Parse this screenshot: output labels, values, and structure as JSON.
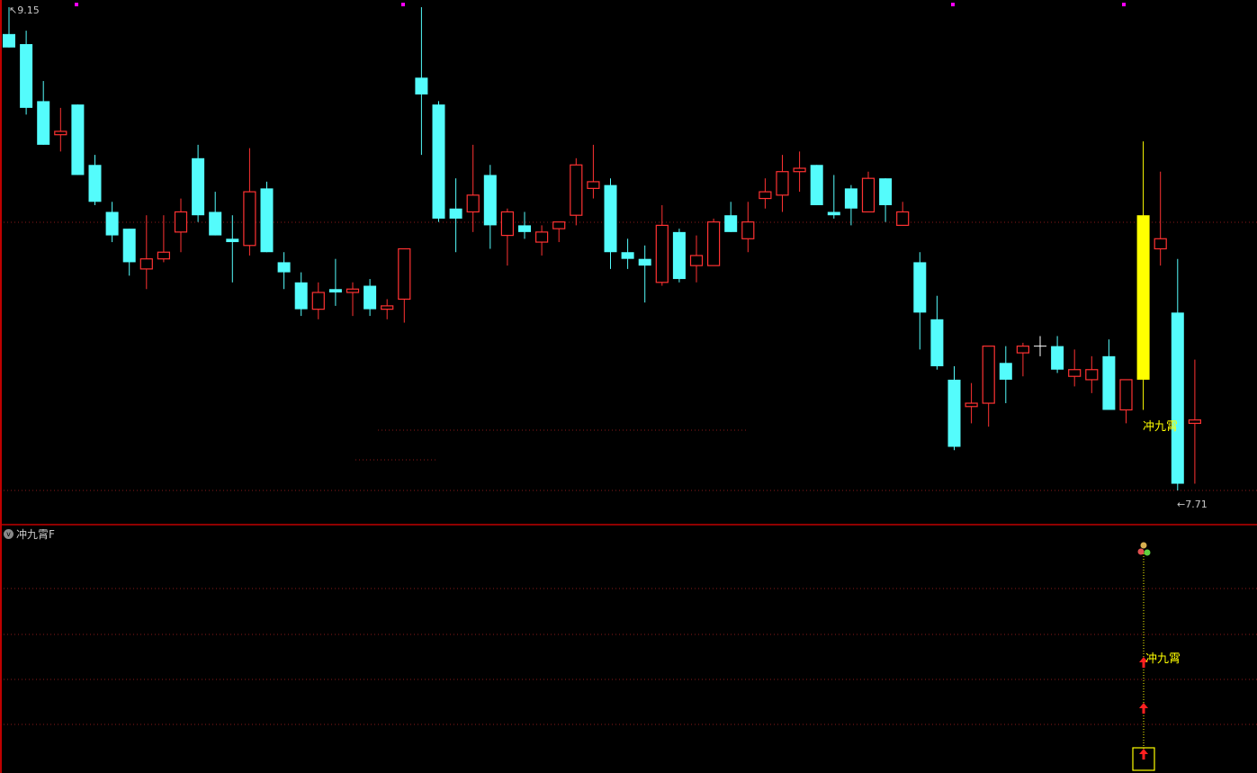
{
  "chart_data": {
    "type": "candlestick",
    "title": "",
    "ylim": [
      7.71,
      9.15
    ],
    "grid": true,
    "high_label": "9.15",
    "low_label": "7.71",
    "signal_index": 66,
    "signal_label": "冲九霄",
    "colors": {
      "up": "#ff3232",
      "down": "#54fcfc",
      "doji": "#ffffff",
      "signal": "#ffff00",
      "marker": "#ff00ff"
    },
    "ohlc": [
      [
        9.07,
        9.15,
        9.03,
        9.03
      ],
      [
        9.04,
        9.08,
        8.83,
        8.85
      ],
      [
        8.87,
        8.93,
        8.74,
        8.74
      ],
      [
        8.77,
        8.85,
        8.72,
        8.78
      ],
      [
        8.86,
        8.86,
        8.65,
        8.65
      ],
      [
        8.68,
        8.71,
        8.56,
        8.57
      ],
      [
        8.54,
        8.57,
        8.45,
        8.47
      ],
      [
        8.49,
        8.49,
        8.35,
        8.39
      ],
      [
        8.37,
        8.53,
        8.31,
        8.4
      ],
      [
        8.4,
        8.53,
        8.39,
        8.42
      ],
      [
        8.48,
        8.58,
        8.42,
        8.54
      ],
      [
        8.7,
        8.74,
        8.51,
        8.53
      ],
      [
        8.54,
        8.6,
        8.47,
        8.47
      ],
      [
        8.46,
        8.53,
        8.33,
        8.45
      ],
      [
        8.44,
        8.73,
        8.41,
        8.6
      ],
      [
        8.61,
        8.63,
        8.42,
        8.42
      ],
      [
        8.39,
        8.42,
        8.31,
        8.36
      ],
      [
        8.33,
        8.36,
        8.23,
        8.25
      ],
      [
        8.25,
        8.33,
        8.22,
        8.3
      ],
      [
        8.31,
        8.4,
        8.26,
        8.3
      ],
      [
        8.3,
        8.33,
        8.23,
        8.31
      ],
      [
        8.32,
        8.34,
        8.23,
        8.25
      ],
      [
        8.25,
        8.28,
        8.22,
        8.26
      ],
      [
        8.28,
        8.43,
        8.21,
        8.43
      ],
      [
        8.94,
        9.15,
        8.71,
        8.89
      ],
      [
        8.86,
        8.87,
        8.51,
        8.52
      ],
      [
        8.55,
        8.64,
        8.42,
        8.52
      ],
      [
        8.54,
        8.74,
        8.48,
        8.59
      ],
      [
        8.65,
        8.68,
        8.43,
        8.5
      ],
      [
        8.47,
        8.55,
        8.38,
        8.54
      ],
      [
        8.5,
        8.54,
        8.46,
        8.48
      ],
      [
        8.45,
        8.5,
        8.41,
        8.48
      ],
      [
        8.49,
        8.51,
        8.45,
        8.51
      ],
      [
        8.53,
        8.7,
        8.5,
        8.68
      ],
      [
        8.61,
        8.74,
        8.58,
        8.63
      ],
      [
        8.62,
        8.64,
        8.37,
        8.42
      ],
      [
        8.42,
        8.46,
        8.37,
        8.4
      ],
      [
        8.4,
        8.44,
        8.27,
        8.38
      ],
      [
        8.33,
        8.56,
        8.32,
        8.5
      ],
      [
        8.48,
        8.49,
        8.33,
        8.34
      ],
      [
        8.38,
        8.47,
        8.33,
        8.41
      ],
      [
        8.38,
        8.52,
        8.38,
        8.51
      ],
      [
        8.53,
        8.57,
        8.48,
        8.48
      ],
      [
        8.46,
        8.57,
        8.42,
        8.51
      ],
      [
        8.58,
        8.64,
        8.55,
        8.6
      ],
      [
        8.59,
        8.71,
        8.54,
        8.66
      ],
      [
        8.66,
        8.72,
        8.6,
        8.67
      ],
      [
        8.68,
        8.68,
        8.56,
        8.56
      ],
      [
        8.54,
        8.65,
        8.52,
        8.53
      ],
      [
        8.61,
        8.62,
        8.5,
        8.55
      ],
      [
        8.54,
        8.66,
        8.54,
        8.64
      ],
      [
        8.64,
        8.64,
        8.51,
        8.56
      ],
      [
        8.5,
        8.57,
        8.5,
        8.54
      ],
      [
        8.39,
        8.42,
        8.13,
        8.24
      ],
      [
        8.22,
        8.29,
        8.07,
        8.08
      ],
      [
        8.04,
        8.08,
        7.83,
        7.84
      ],
      [
        7.96,
        8.03,
        7.91,
        7.97
      ],
      [
        7.97,
        8.14,
        7.9,
        8.14
      ],
      [
        8.09,
        8.14,
        7.97,
        8.04
      ],
      [
        8.12,
        8.15,
        8.05,
        8.14
      ],
      [
        8.14,
        8.17,
        8.11,
        8.14
      ],
      [
        8.14,
        8.17,
        8.06,
        8.07
      ],
      [
        8.05,
        8.13,
        8.02,
        8.07
      ],
      [
        8.04,
        8.11,
        8.0,
        8.07
      ],
      [
        8.11,
        8.16,
        7.95,
        7.95
      ],
      [
        7.95,
        8.04,
        7.91,
        8.04
      ],
      [
        8.04,
        8.75,
        7.95,
        8.53
      ],
      [
        8.43,
        8.66,
        8.38,
        8.46
      ],
      [
        8.24,
        8.4,
        7.71,
        7.73
      ],
      [
        7.91,
        8.1,
        7.73,
        7.92
      ]
    ]
  },
  "indicator_pane": {
    "title": "冲九霄F",
    "signal_label": "冲九霄"
  }
}
